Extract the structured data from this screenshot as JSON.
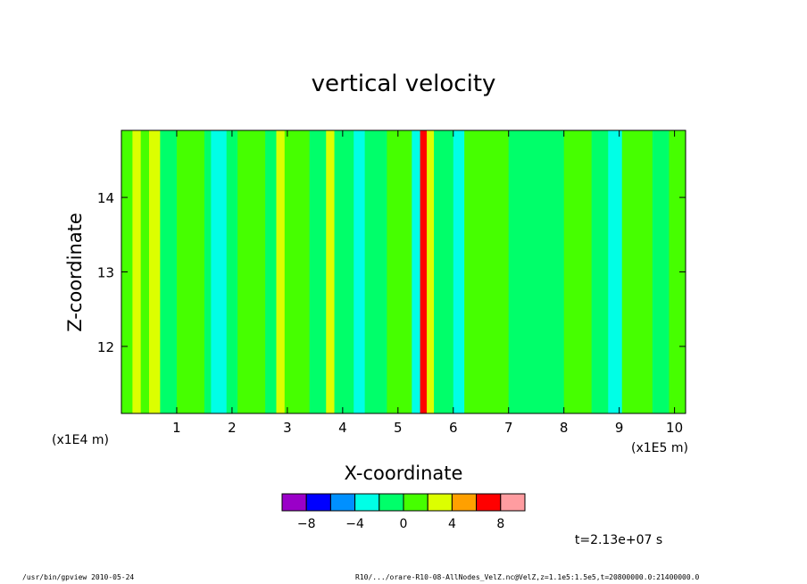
{
  "footer": {
    "program": "/usr/bin/gpview   2010-05-24",
    "source": "R10/.../orare-R10-08-AllNodes_VelZ.nc@VelZ,z=1.1e5:1.5e5,t=20800000.0:21400000.0"
  },
  "chart_data": {
    "type": "heatmap",
    "title": "vertical velocity",
    "xlabel": "X-coordinate",
    "ylabel": "Z-coordinate",
    "x_unit_label": "(x1E5 m)",
    "y_unit_label": "(x1E4 m)",
    "xlim": [
      0,
      10.2
    ],
    "ylim": [
      11.1,
      14.9
    ],
    "x_ticks": [
      1,
      2,
      3,
      4,
      5,
      6,
      7,
      8,
      9,
      10
    ],
    "y_ticks": [
      12,
      13,
      14
    ],
    "time_label": "t=2.13e+07 s",
    "colorbar": {
      "bounds": [
        -10,
        -8,
        -6,
        -4,
        -2,
        0,
        2,
        4,
        6,
        8,
        10
      ],
      "tick_labels": [
        "-8",
        "-4",
        "0",
        "4",
        "8"
      ],
      "colors": [
        "#9a00c8",
        "#0000ff",
        "#0090ff",
        "#00ffe6",
        "#00ff6a",
        "#46ff00",
        "#dcff00",
        "#ffa000",
        "#ff0000",
        "#ff9ca0"
      ]
    },
    "columns": [
      {
        "x": [
          0.0,
          0.2
        ],
        "v": 0.5
      },
      {
        "x": [
          0.2,
          0.35
        ],
        "v": 2.5
      },
      {
        "x": [
          0.35,
          0.5
        ],
        "v": 0.5
      },
      {
        "x": [
          0.5,
          0.7
        ],
        "v": 2.5
      },
      {
        "x": [
          0.7,
          1.0
        ],
        "v": -0.5
      },
      {
        "x": [
          1.0,
          1.5
        ],
        "v": 0.5
      },
      {
        "x": [
          1.5,
          1.62
        ],
        "v": -1.0
      },
      {
        "x": [
          1.62,
          1.9
        ],
        "v": -2.5
      },
      {
        "x": [
          1.9,
          2.1
        ],
        "v": -1.0
      },
      {
        "x": [
          2.1,
          2.6
        ],
        "v": 0.5
      },
      {
        "x": [
          2.6,
          2.8
        ],
        "v": -0.5
      },
      {
        "x": [
          2.8,
          2.95
        ],
        "v": 2.5
      },
      {
        "x": [
          2.95,
          3.4
        ],
        "v": 0.5
      },
      {
        "x": [
          3.4,
          3.7
        ],
        "v": -0.5
      },
      {
        "x": [
          3.7,
          3.85
        ],
        "v": 2.5
      },
      {
        "x": [
          3.85,
          4.2
        ],
        "v": -1.0
      },
      {
        "x": [
          4.2,
          4.4
        ],
        "v": -2.5
      },
      {
        "x": [
          4.4,
          4.8
        ],
        "v": -0.5
      },
      {
        "x": [
          4.8,
          5.25
        ],
        "v": 0.5
      },
      {
        "x": [
          5.25,
          5.4
        ],
        "v": -2.5
      },
      {
        "x": [
          5.4,
          5.52
        ],
        "v": 7.0
      },
      {
        "x": [
          5.52,
          5.65
        ],
        "v": 2.5
      },
      {
        "x": [
          5.65,
          6.0
        ],
        "v": -0.5
      },
      {
        "x": [
          6.0,
          6.2
        ],
        "v": -2.5
      },
      {
        "x": [
          6.2,
          7.0
        ],
        "v": 0.5
      },
      {
        "x": [
          7.0,
          8.0
        ],
        "v": -0.5
      },
      {
        "x": [
          8.0,
          8.5
        ],
        "v": 0.5
      },
      {
        "x": [
          8.5,
          8.8
        ],
        "v": -0.5
      },
      {
        "x": [
          8.8,
          9.05
        ],
        "v": -2.5
      },
      {
        "x": [
          9.05,
          9.6
        ],
        "v": 0.5
      },
      {
        "x": [
          9.6,
          9.9
        ],
        "v": -0.5
      },
      {
        "x": [
          9.9,
          10.2
        ],
        "v": 0.5
      }
    ]
  }
}
